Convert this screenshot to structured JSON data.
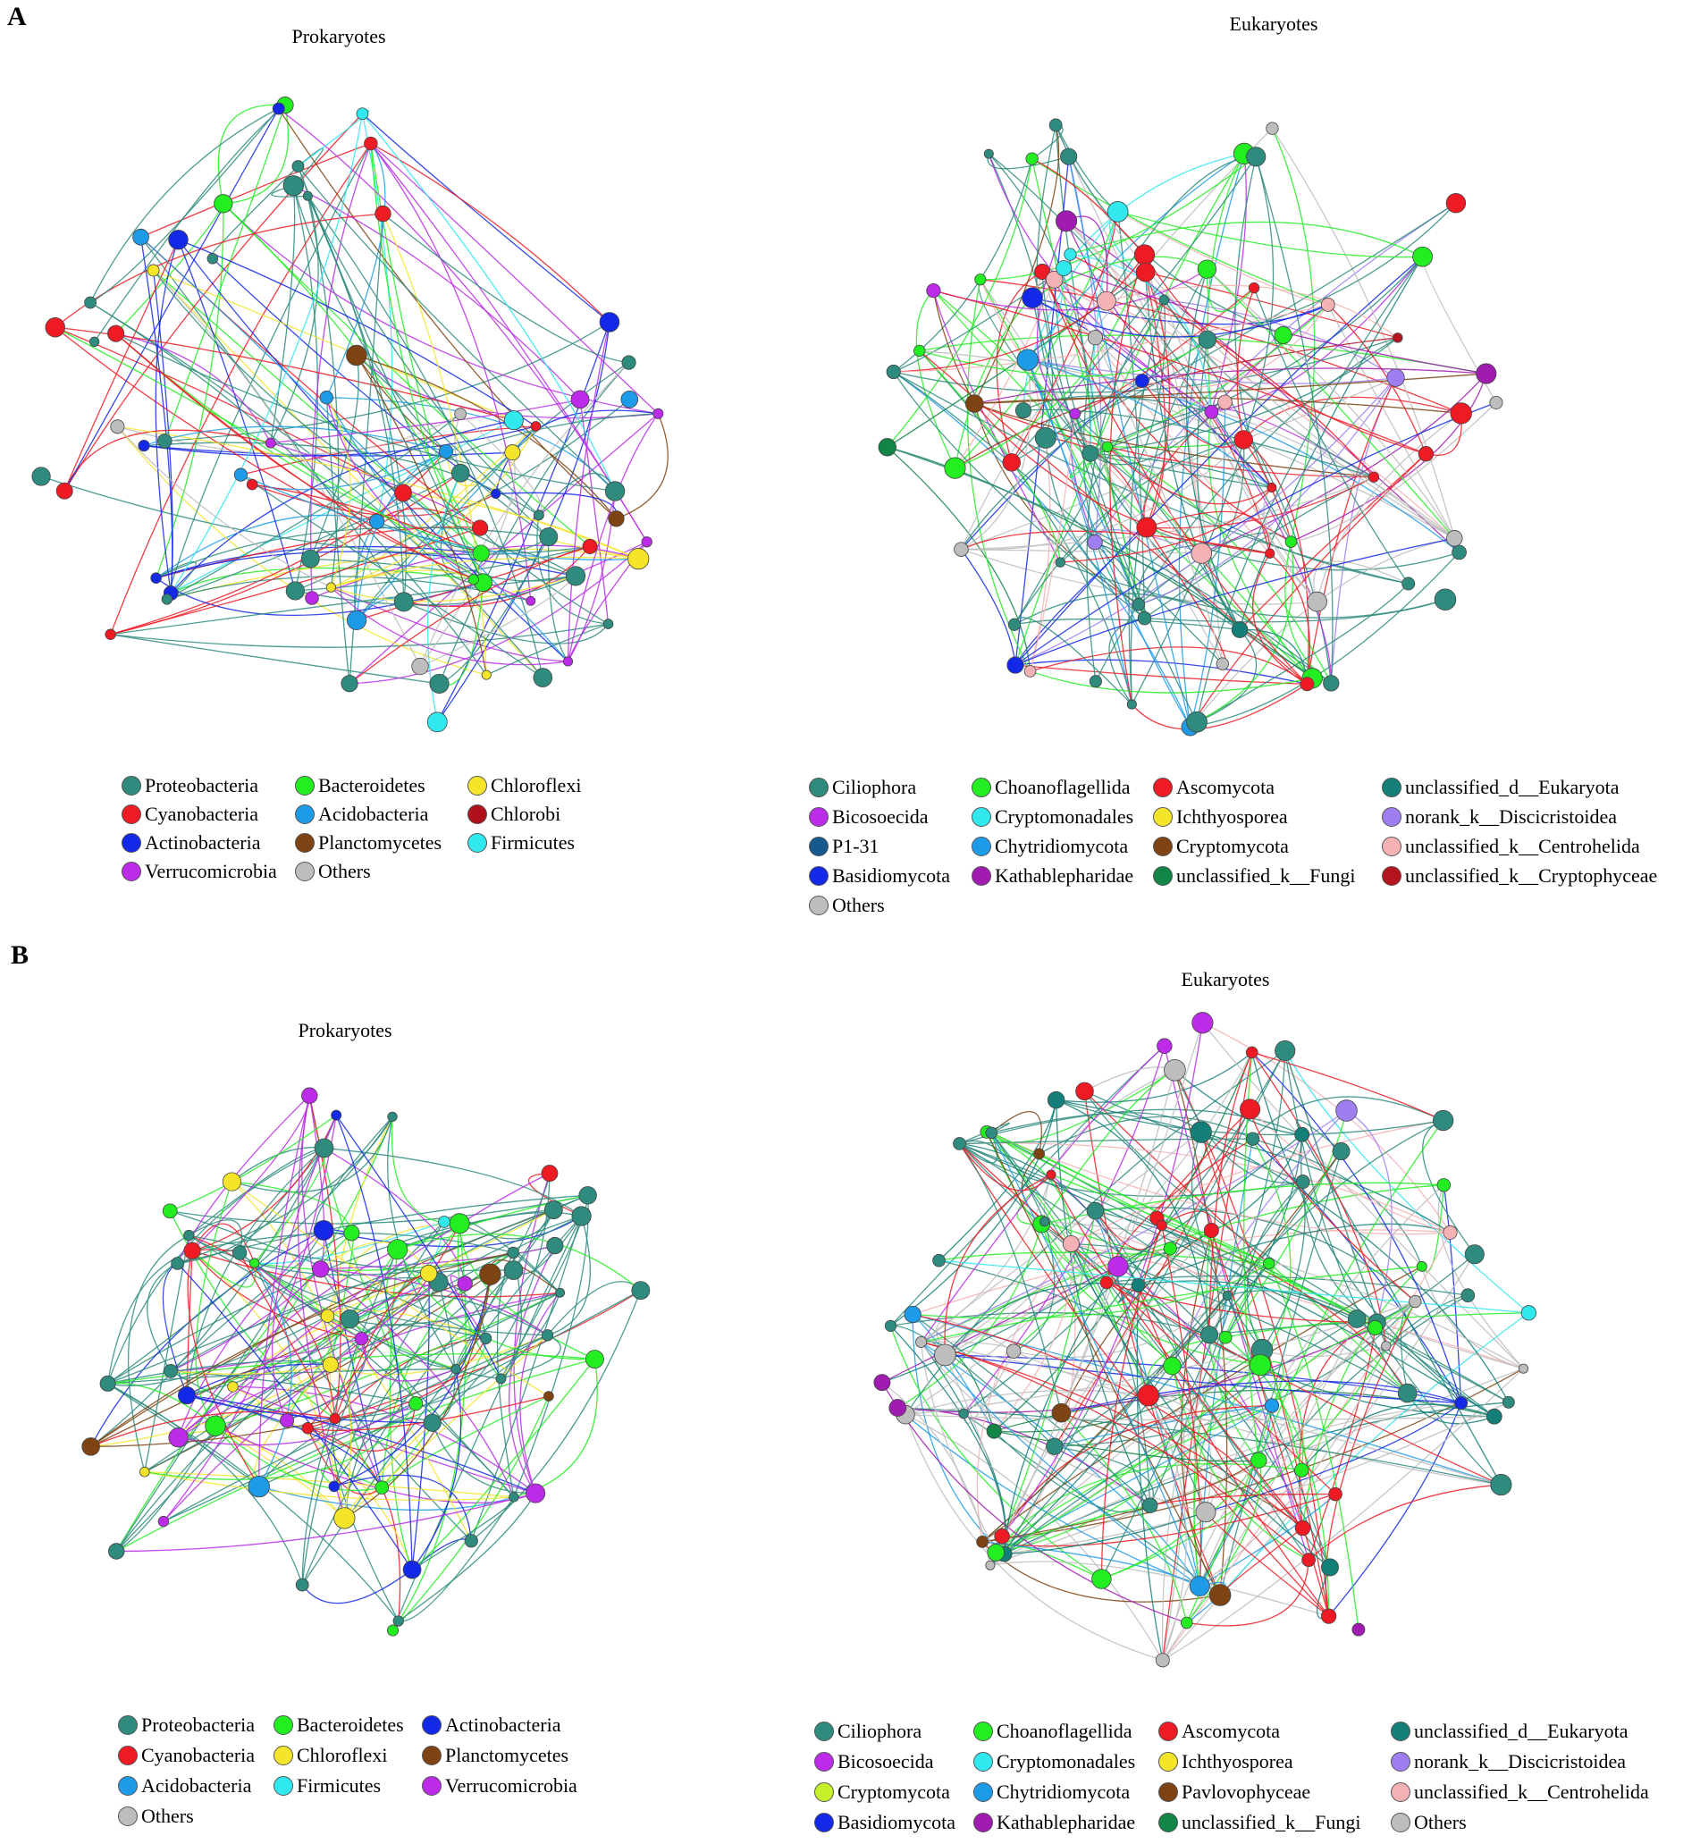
{
  "panels": [
    {
      "letter": "A"
    },
    {
      "letter": "B"
    }
  ],
  "networks": {
    "a_prok": {
      "title": "Prokaryotes"
    },
    "a_euk": {
      "title": "Eukaryotes"
    },
    "b_prok": {
      "title": "Prokaryotes"
    },
    "b_euk": {
      "title": "Eukaryotes"
    }
  },
  "colors": {
    "teal": "#2e8b7e",
    "green": "#22ee22",
    "yellow": "#f5e52a",
    "red": "#ee1b24",
    "sky": "#1e9be8",
    "darkred": "#b0121c",
    "blue": "#1428e8",
    "brown": "#7d4312",
    "cyan": "#30e8ee",
    "purple": "#bb2be8",
    "grey": "#bdbdbd",
    "navy": "#15598e",
    "magenta": "#a01bb0",
    "darkgreen": "#118448",
    "darkteal": "#147f78",
    "lavender": "#9f7ef2",
    "pink": "#f4b2b4",
    "crimson": "#b5141e",
    "lime": "#c5f02a"
  },
  "legends": {
    "a_prok": [
      {
        "label": "Proteobacteria",
        "color": "teal"
      },
      {
        "label": "Bacteroidetes",
        "color": "green"
      },
      {
        "label": "Chloroflexi",
        "color": "yellow"
      },
      {
        "label": "Cyanobacteria",
        "color": "red"
      },
      {
        "label": "Acidobacteria",
        "color": "sky"
      },
      {
        "label": "Chlorobi",
        "color": "darkred"
      },
      {
        "label": "Actinobacteria",
        "color": "blue"
      },
      {
        "label": "Planctomycetes",
        "color": "brown"
      },
      {
        "label": "Firmicutes",
        "color": "cyan"
      },
      {
        "label": "Verrucomicrobia",
        "color": "purple"
      },
      {
        "label": "Others",
        "color": "grey"
      }
    ],
    "a_euk": [
      {
        "label": "Ciliophora",
        "color": "teal"
      },
      {
        "label": "Choanoflagellida",
        "color": "green"
      },
      {
        "label": "Ascomycota",
        "color": "red"
      },
      {
        "label": "unclassified_d__Eukaryota",
        "color": "darkteal"
      },
      {
        "label": "Bicosoecida",
        "color": "purple"
      },
      {
        "label": "Cryptomonadales",
        "color": "cyan"
      },
      {
        "label": "Ichthyosporea",
        "color": "yellow"
      },
      {
        "label": "norank_k__Discicristoidea",
        "color": "lavender"
      },
      {
        "label": "P1-31",
        "color": "navy"
      },
      {
        "label": "Chytridiomycota",
        "color": "sky"
      },
      {
        "label": "Cryptomycota",
        "color": "brown"
      },
      {
        "label": "unclassified_k__Centrohelida",
        "color": "pink"
      },
      {
        "label": "Basidiomycota",
        "color": "blue"
      },
      {
        "label": "Kathablepharidae",
        "color": "magenta"
      },
      {
        "label": "unclassified_k__Fungi",
        "color": "darkgreen"
      },
      {
        "label": "unclassified_k__Cryptophyceae",
        "color": "crimson"
      },
      {
        "label": "Others",
        "color": "grey"
      }
    ],
    "b_prok": [
      {
        "label": "Proteobacteria",
        "color": "teal"
      },
      {
        "label": "Bacteroidetes",
        "color": "green"
      },
      {
        "label": "Actinobacteria",
        "color": "blue"
      },
      {
        "label": "Cyanobacteria",
        "color": "red"
      },
      {
        "label": "Chloroflexi",
        "color": "yellow"
      },
      {
        "label": "Planctomycetes",
        "color": "brown"
      },
      {
        "label": "Acidobacteria",
        "color": "sky"
      },
      {
        "label": "Firmicutes",
        "color": "cyan"
      },
      {
        "label": "Verrucomicrobia",
        "color": "purple"
      },
      {
        "label": "Others",
        "color": "grey"
      }
    ],
    "b_euk": [
      {
        "label": "Ciliophora",
        "color": "teal"
      },
      {
        "label": "Choanoflagellida",
        "color": "green"
      },
      {
        "label": "Ascomycota",
        "color": "red"
      },
      {
        "label": "unclassified_d__Eukaryota",
        "color": "darkteal"
      },
      {
        "label": "Bicosoecida",
        "color": "purple"
      },
      {
        "label": "Cryptomonadales",
        "color": "cyan"
      },
      {
        "label": "Ichthyosporea",
        "color": "yellow"
      },
      {
        "label": "norank_k__Discicristoidea",
        "color": "lavender"
      },
      {
        "label": "Cryptomycota",
        "color": "lime"
      },
      {
        "label": "Chytridiomycota",
        "color": "sky"
      },
      {
        "label": "Pavlovophyceae",
        "color": "brown"
      },
      {
        "label": "unclassified_k__Centrohelida",
        "color": "pink"
      },
      {
        "label": "Basidiomycota",
        "color": "blue"
      },
      {
        "label": "Kathablepharidae",
        "color": "magenta"
      },
      {
        "label": "unclassified_k__Fungi",
        "color": "darkgreen"
      },
      {
        "label": "Others",
        "color": "grey"
      }
    ]
  }
}
